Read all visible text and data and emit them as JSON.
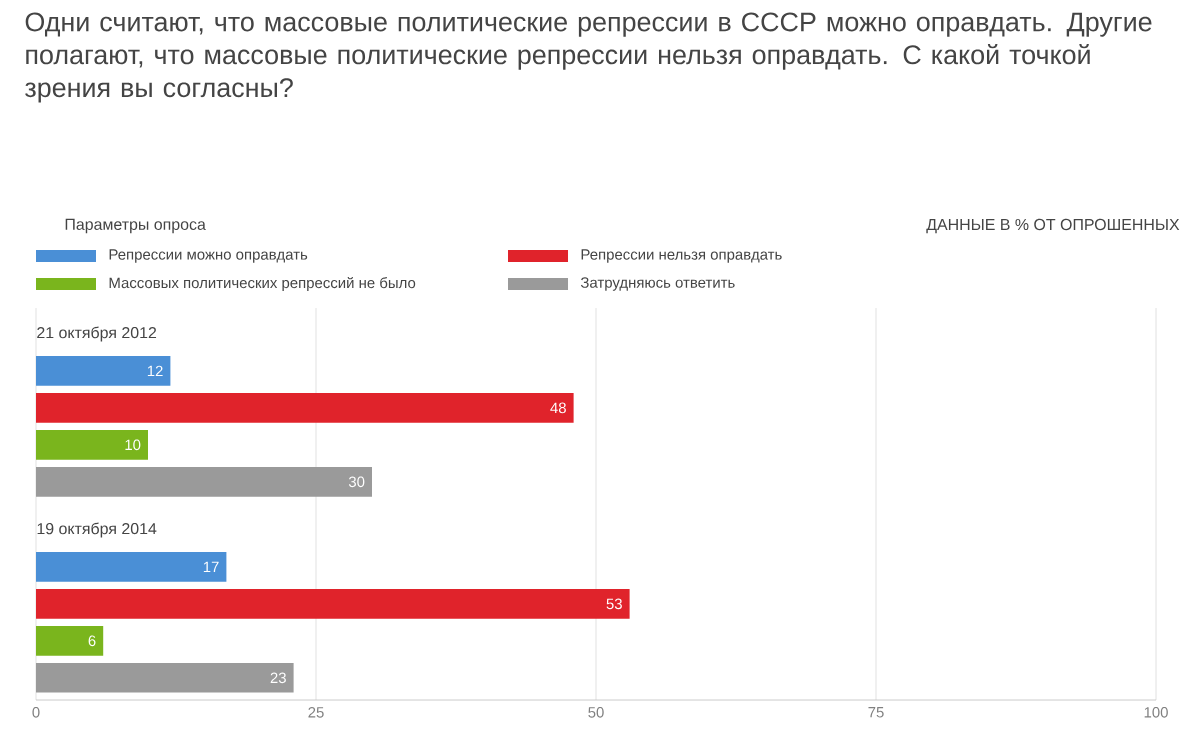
{
  "chart_data": {
    "type": "bar",
    "orientation": "horizontal",
    "title": "Одни считают, что массовые политические репрессии в СССР можно оправдать. Другие полагают, что массовые политические репрессии нельзя оправдать. С какой точкой зрения вы согласны?",
    "subtitle": "ДАННЫЕ В % ОТ ОПРОШЕННЫХ",
    "annotations": [
      "Параметры опроса"
    ],
    "categories": [
      "21 октября 2012",
      "19 октября 2014"
    ],
    "series": [
      {
        "name": "Репрессии можно оправдать",
        "color": "#4a8fd6",
        "values": [
          12,
          17
        ]
      },
      {
        "name": "Репрессии нельзя оправдать",
        "color": "#e0232b",
        "values": [
          48,
          53
        ]
      },
      {
        "name": "Массовых политических репрессий не было",
        "color": "#7ab51d",
        "values": [
          10,
          6
        ]
      },
      {
        "name": "Затрудняюсь ответить",
        "color": "#9a9a9a",
        "values": [
          30,
          23
        ]
      }
    ],
    "xlim": [
      0,
      100
    ],
    "xticks": [
      0,
      25,
      50,
      75,
      100
    ],
    "grid": "x",
    "legend": "top",
    "data_labels": true
  }
}
